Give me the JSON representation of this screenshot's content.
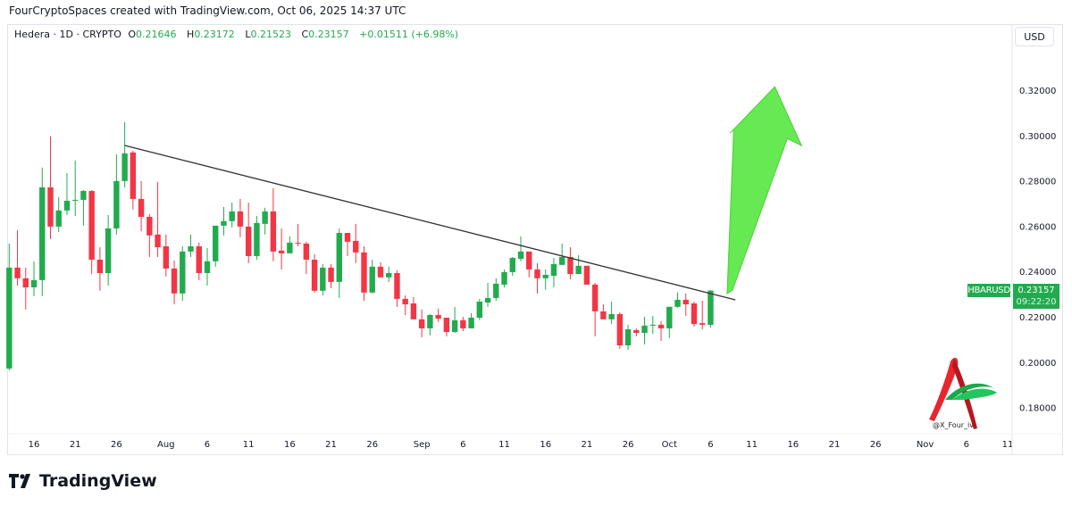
{
  "credit": "FourCryptoSpaces created with TradingView.com, Oct 06, 2025 14:37 UTC",
  "legend": {
    "symbol": "Hedera · 1D · CRYPTO",
    "o_label": "O",
    "o": "0.21646",
    "h_label": "H",
    "h": "0.23172",
    "l_label": "L",
    "l": "0.21523",
    "c_label": "C",
    "c": "0.23157",
    "change": "+0.01511 (+6.98%)"
  },
  "currency_button": "USD",
  "price_tag": {
    "symbol": "HBARUSD",
    "price": "0.23157",
    "countdown": "09:22:20"
  },
  "watermark": "@X_Four_iv",
  "footer_brand": "TradingView",
  "colors": {
    "up": "#22ab4e",
    "down": "#f23645",
    "arrow": "#5ee84a",
    "trendline": "#333333"
  },
  "chart_data": {
    "type": "candlestick",
    "title": "Hedera · 1D · CRYPTO",
    "start_date": "2025-07-13",
    "interval": "1D",
    "ylim": [
      0.166,
      0.33
    ],
    "y_ticks": [
      "0.32000",
      "0.30000",
      "0.28000",
      "0.26000",
      "0.24000",
      "0.22000",
      "0.20000",
      "0.18000"
    ],
    "x_ticks": [
      {
        "label": "16",
        "date": "2025-07-16"
      },
      {
        "label": "21",
        "date": "2025-07-21"
      },
      {
        "label": "26",
        "date": "2025-07-26"
      },
      {
        "label": "Aug",
        "date": "2025-08-01"
      },
      {
        "label": "6",
        "date": "2025-08-06"
      },
      {
        "label": "11",
        "date": "2025-08-11"
      },
      {
        "label": "16",
        "date": "2025-08-16"
      },
      {
        "label": "21",
        "date": "2025-08-21"
      },
      {
        "label": "26",
        "date": "2025-08-26"
      },
      {
        "label": "Sep",
        "date": "2025-09-01"
      },
      {
        "label": "6",
        "date": "2025-09-06"
      },
      {
        "label": "11",
        "date": "2025-09-11"
      },
      {
        "label": "16",
        "date": "2025-09-16"
      },
      {
        "label": "21",
        "date": "2025-09-21"
      },
      {
        "label": "26",
        "date": "2025-09-26"
      },
      {
        "label": "Oct",
        "date": "2025-10-01"
      },
      {
        "label": "6",
        "date": "2025-10-06"
      },
      {
        "label": "11",
        "date": "2025-10-11"
      },
      {
        "label": "16",
        "date": "2025-10-16"
      },
      {
        "label": "21",
        "date": "2025-10-21"
      },
      {
        "label": "26",
        "date": "2025-10-26"
      },
      {
        "label": "Nov",
        "date": "2025-11-01"
      },
      {
        "label": "6",
        "date": "2025-11-06"
      },
      {
        "label": "11",
        "date": "2025-11-11"
      }
    ],
    "ohlc": [
      [
        0.1972,
        0.2523,
        0.1964,
        0.2417
      ],
      [
        0.2417,
        0.2582,
        0.2338,
        0.237
      ],
      [
        0.237,
        0.2417,
        0.2232,
        0.233
      ],
      [
        0.233,
        0.2445,
        0.2291,
        0.2362
      ],
      [
        0.2362,
        0.2858,
        0.2291,
        0.2771
      ],
      [
        0.2771,
        0.2996,
        0.2543,
        0.2598
      ],
      [
        0.2598,
        0.2728,
        0.2574,
        0.2669
      ],
      [
        0.2669,
        0.2834,
        0.2649,
        0.2712
      ],
      [
        0.2712,
        0.2889,
        0.2645,
        0.2716
      ],
      [
        0.2716,
        0.2759,
        0.2602,
        0.2755
      ],
      [
        0.2755,
        0.2759,
        0.2388,
        0.2452
      ],
      [
        0.2452,
        0.2507,
        0.2315,
        0.2393
      ],
      [
        0.2393,
        0.2649,
        0.2338,
        0.259
      ],
      [
        0.259,
        0.2917,
        0.2563,
        0.2799
      ],
      [
        0.2799,
        0.3059,
        0.2771,
        0.2921
      ],
      [
        0.2925,
        0.2933,
        0.2673,
        0.272
      ],
      [
        0.272,
        0.2799,
        0.2578,
        0.2641
      ],
      [
        0.2641,
        0.2653,
        0.2464,
        0.2559
      ],
      [
        0.2563,
        0.2795,
        0.2464,
        0.2507
      ],
      [
        0.2511,
        0.2563,
        0.2378,
        0.2413
      ],
      [
        0.2413,
        0.2448,
        0.2255,
        0.2303
      ],
      [
        0.2303,
        0.2511,
        0.2271,
        0.2488
      ],
      [
        0.2488,
        0.2563,
        0.2464,
        0.2511
      ],
      [
        0.2511,
        0.2527,
        0.2362,
        0.2393
      ],
      [
        0.2393,
        0.2503,
        0.2338,
        0.2445
      ],
      [
        0.2445,
        0.2602,
        0.2421,
        0.2602
      ],
      [
        0.2602,
        0.2685,
        0.2559,
        0.2622
      ],
      [
        0.2622,
        0.2704,
        0.2594,
        0.2665
      ],
      [
        0.2665,
        0.272,
        0.2551,
        0.2598
      ],
      [
        0.2598,
        0.2704,
        0.2437,
        0.2468
      ],
      [
        0.2468,
        0.2645,
        0.2452,
        0.2614
      ],
      [
        0.261,
        0.2681,
        0.2563,
        0.2665
      ],
      [
        0.2665,
        0.2767,
        0.2445,
        0.2488
      ],
      [
        0.2492,
        0.259,
        0.2409,
        0.248
      ],
      [
        0.248,
        0.2555,
        0.248,
        0.2527
      ],
      [
        0.2527,
        0.261,
        0.2511,
        0.2523
      ],
      [
        0.2523,
        0.2531,
        0.2389,
        0.2452
      ],
      [
        0.2452,
        0.2476,
        0.2307,
        0.2315
      ],
      [
        0.2315,
        0.2433,
        0.2295,
        0.2417
      ],
      [
        0.2417,
        0.2433,
        0.2326,
        0.2354
      ],
      [
        0.2354,
        0.259,
        0.2283,
        0.257
      ],
      [
        0.257,
        0.257,
        0.2468,
        0.2531
      ],
      [
        0.2535,
        0.261,
        0.2437,
        0.2484
      ],
      [
        0.2484,
        0.2511,
        0.2271,
        0.2307
      ],
      [
        0.2307,
        0.2452,
        0.2303,
        0.2421
      ],
      [
        0.2421,
        0.2441,
        0.2374,
        0.2374
      ],
      [
        0.2374,
        0.2421,
        0.2354,
        0.2393
      ],
      [
        0.2393,
        0.2405,
        0.2244,
        0.2279
      ],
      [
        0.2279,
        0.2295,
        0.2208,
        0.2255
      ],
      [
        0.2259,
        0.2287,
        0.2189,
        0.2189
      ],
      [
        0.2189,
        0.2232,
        0.211,
        0.2149
      ],
      [
        0.2149,
        0.2212,
        0.2118,
        0.2208
      ],
      [
        0.2208,
        0.2236,
        0.2177,
        0.2192
      ],
      [
        0.2196,
        0.2196,
        0.2114,
        0.2133
      ],
      [
        0.2133,
        0.2244,
        0.2129,
        0.2185
      ],
      [
        0.2185,
        0.22,
        0.2137,
        0.2149
      ],
      [
        0.2149,
        0.2216,
        0.2149,
        0.2196
      ],
      [
        0.2196,
        0.2279,
        0.2185,
        0.2267
      ],
      [
        0.2263,
        0.235,
        0.2244,
        0.2283
      ],
      [
        0.2283,
        0.237,
        0.2271,
        0.2346
      ],
      [
        0.2342,
        0.2409,
        0.233,
        0.2397
      ],
      [
        0.2397,
        0.2464,
        0.2381,
        0.246
      ],
      [
        0.2456,
        0.2555,
        0.2445,
        0.2488
      ],
      [
        0.2488,
        0.2488,
        0.2374,
        0.2409
      ],
      [
        0.2409,
        0.2437,
        0.2303,
        0.237
      ],
      [
        0.237,
        0.2409,
        0.2319,
        0.2385
      ],
      [
        0.2381,
        0.246,
        0.233,
        0.2433
      ],
      [
        0.2429,
        0.2523,
        0.2429,
        0.2464
      ],
      [
        0.2464,
        0.2507,
        0.2366,
        0.2389
      ],
      [
        0.2389,
        0.2472,
        0.2389,
        0.2425
      ],
      [
        0.2425,
        0.2425,
        0.2342,
        0.2342
      ],
      [
        0.2342,
        0.235,
        0.2114,
        0.2224
      ],
      [
        0.2224,
        0.2255,
        0.2189,
        0.2189
      ],
      [
        0.2189,
        0.2267,
        0.2169,
        0.2212
      ],
      [
        0.2212,
        0.222,
        0.2059,
        0.2074
      ],
      [
        0.2074,
        0.2165,
        0.2055,
        0.2145
      ],
      [
        0.2141,
        0.2149,
        0.2114,
        0.2129
      ],
      [
        0.2129,
        0.22,
        0.2078,
        0.2161
      ],
      [
        0.2161,
        0.2204,
        0.2125,
        0.2165
      ],
      [
        0.2165,
        0.2181,
        0.2094,
        0.2149
      ],
      [
        0.2149,
        0.2244,
        0.2106,
        0.2244
      ],
      [
        0.2244,
        0.2307,
        0.224,
        0.2275
      ],
      [
        0.2275,
        0.2303,
        0.2204,
        0.2255
      ],
      [
        0.2259,
        0.2267,
        0.2157,
        0.2168
      ],
      [
        0.2172,
        0.2271,
        0.2145,
        0.2165
      ],
      [
        0.21646,
        0.23172,
        0.21523,
        0.23157
      ]
    ],
    "trendline": {
      "start": {
        "date": "2025-07-27",
        "price": 0.2956
      },
      "end": {
        "date": "2025-10-09",
        "price": 0.2275
      }
    },
    "annotation_arrow": {
      "direction": "up",
      "from": {
        "date": "2025-10-08",
        "price": 0.2302
      },
      "to": {
        "date": "2025-10-14",
        "price": 0.3215
      }
    }
  }
}
